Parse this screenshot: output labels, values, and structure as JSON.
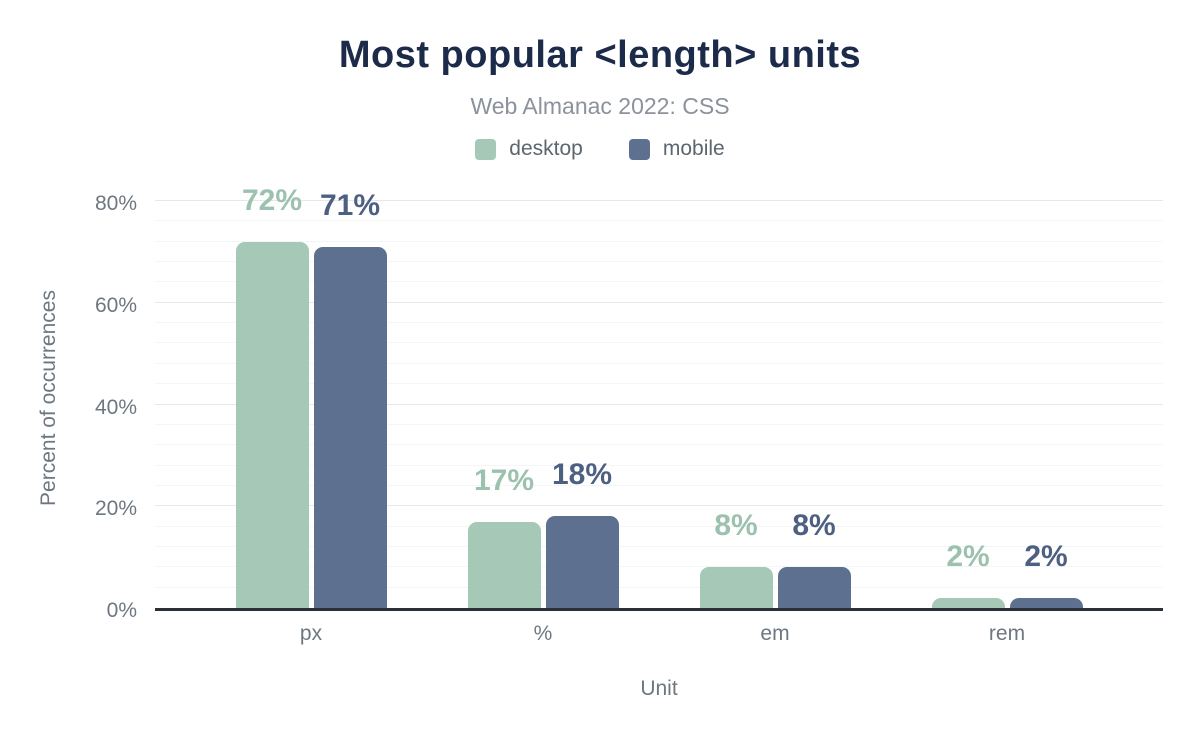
{
  "chart_data": {
    "type": "bar",
    "title": "Most popular <length> units",
    "subtitle": "Web Almanac 2022: CSS",
    "xlabel": "Unit",
    "ylabel": "Percent of occurrences",
    "categories": [
      "px",
      "%",
      "em",
      "rem"
    ],
    "series": [
      {
        "name": "desktop",
        "values": [
          72,
          17,
          8,
          2
        ],
        "labels": [
          "72%",
          "17%",
          "8%",
          "2%"
        ],
        "color": "#a6c8b6",
        "label_color": "#9cc2af"
      },
      {
        "name": "mobile",
        "values": [
          71,
          18,
          8,
          2
        ],
        "labels": [
          "71%",
          "18%",
          "8%",
          "2%"
        ],
        "color": "#5e7090",
        "label_color": "#4e6082"
      }
    ],
    "y_axis": {
      "ticks": [
        0,
        20,
        40,
        60,
        80
      ],
      "tick_labels": [
        "0%",
        "20%",
        "40%",
        "60%",
        "80%"
      ],
      "minor_step": 4,
      "ylim": [
        0,
        80
      ]
    },
    "legend": {
      "position": "top",
      "entries": [
        "desktop",
        "mobile"
      ]
    },
    "grid": true
  },
  "colors": {
    "background": "#ffffff",
    "title": "#1c2b4a",
    "subtitle": "#8b929b",
    "legend_text": "#5c666f",
    "axis_text": "#6e7780",
    "axis_line": "#2b3036",
    "gridline_major": "#e6e8ea",
    "gridline_minor": "#f4f5f7"
  }
}
